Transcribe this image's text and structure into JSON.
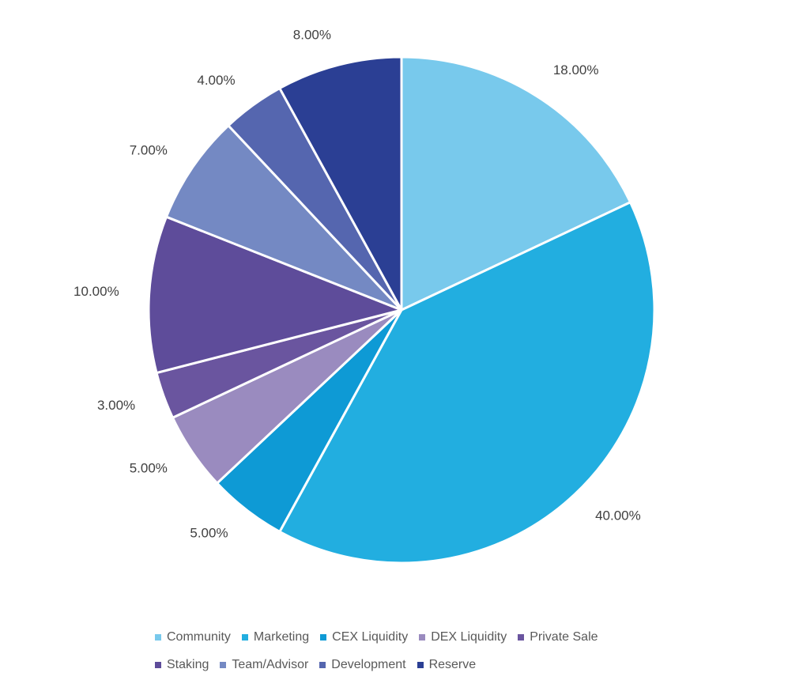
{
  "chart_data": {
    "type": "pie",
    "title": "",
    "slices": [
      {
        "label": "Community",
        "value": 18,
        "display": "18.00%",
        "color": "#78C9EC"
      },
      {
        "label": "Marketing",
        "value": 40,
        "display": "40.00%",
        "color": "#22AEE0"
      },
      {
        "label": "CEX Liquidity",
        "value": 5,
        "display": "5.00%",
        "color": "#0E9AD5"
      },
      {
        "label": "DEX Liquidity",
        "value": 5,
        "display": "5.00%",
        "color": "#9A8BBF"
      },
      {
        "label": "Private Sale",
        "value": 3,
        "display": "3.00%",
        "color": "#6A559F"
      },
      {
        "label": "Staking",
        "value": 10,
        "display": "10.00%",
        "color": "#5E4C9A"
      },
      {
        "label": "Team/Advisor",
        "value": 7,
        "display": "7.00%",
        "color": "#7489C3"
      },
      {
        "label": "Development",
        "value": 4,
        "display": "4.00%",
        "color": "#5566AF"
      },
      {
        "label": "Reserve",
        "value": 8,
        "display": "8.00%",
        "color": "#2B3F94"
      }
    ],
    "legend_position": "bottom",
    "start_angle": "top, clockwise"
  }
}
